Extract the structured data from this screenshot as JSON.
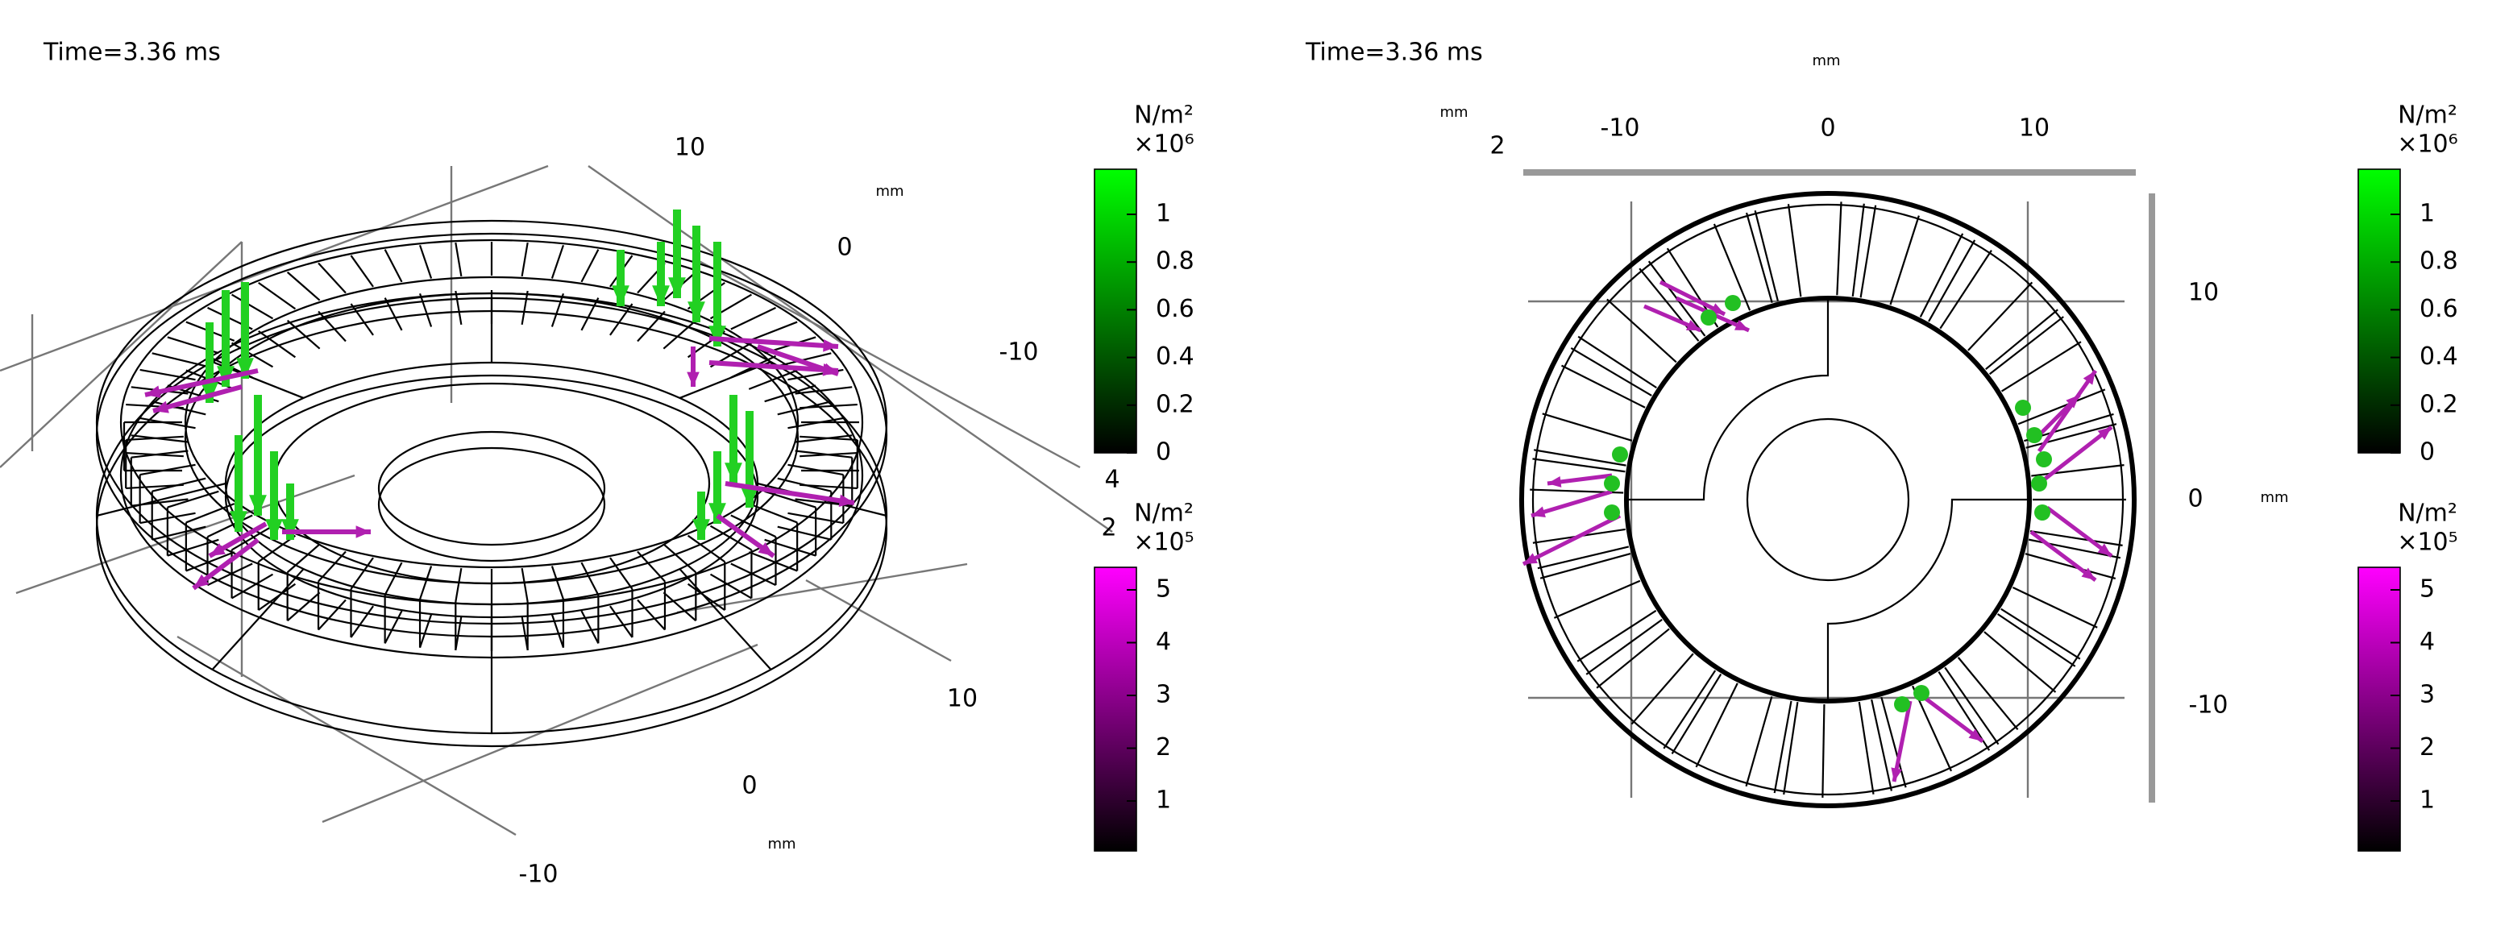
{
  "panels": [
    {
      "time": "Time=3.36 ms",
      "axis_labels": [
        "10",
        "mm",
        "0",
        "-10",
        "4",
        "2",
        "10",
        "0",
        "mm",
        "-10"
      ],
      "colorbars": [
        {
          "unit": "N/m²",
          "scale": "×10⁶",
          "ticks": [
            1,
            0.8,
            0.6,
            0.4,
            0.2,
            0
          ]
        },
        {
          "unit": "N/m²",
          "scale": "×10⁵",
          "ticks": [
            5,
            4,
            3,
            2,
            1
          ]
        }
      ]
    },
    {
      "time": "Time=3.36 ms",
      "axis_labels": [
        "mm",
        "-10",
        "0",
        "10",
        "mm",
        "2",
        "10",
        "0",
        "mm",
        "-10"
      ],
      "colorbars": [
        {
          "unit": "N/m²",
          "scale": "×10⁶",
          "ticks": [
            1,
            0.8,
            0.6,
            0.4,
            0.2,
            0
          ]
        },
        {
          "unit": "N/m²",
          "scale": "×10⁵",
          "ticks": [
            5,
            4,
            3,
            2,
            1
          ]
        }
      ]
    }
  ]
}
